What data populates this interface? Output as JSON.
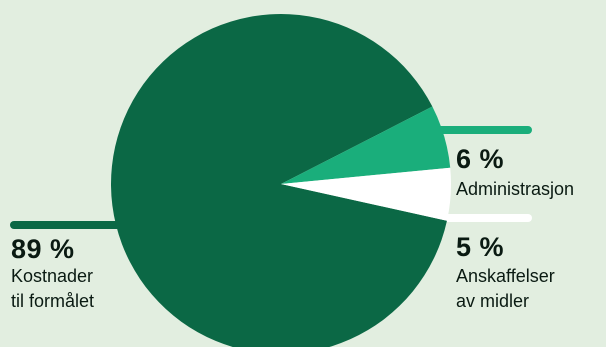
{
  "colors": {
    "background": "#e2eee0",
    "kostnader": "#0b6845",
    "administrasjon": "#1aae7b",
    "anskaffelser": "#ffffff",
    "text": "#0a1a12"
  },
  "chart_data": {
    "type": "pie",
    "slices": [
      {
        "key": "kostnader",
        "value": 89,
        "pct_label": "89 %",
        "label": "Kostnader\ntil formålet"
      },
      {
        "key": "administrasjon",
        "value": 6,
        "pct_label": "6 %",
        "label": "Administrasjon"
      },
      {
        "key": "anskaffelser",
        "value": 5,
        "pct_label": "5 %",
        "label": "Anskaffelser\nav midler"
      }
    ]
  }
}
